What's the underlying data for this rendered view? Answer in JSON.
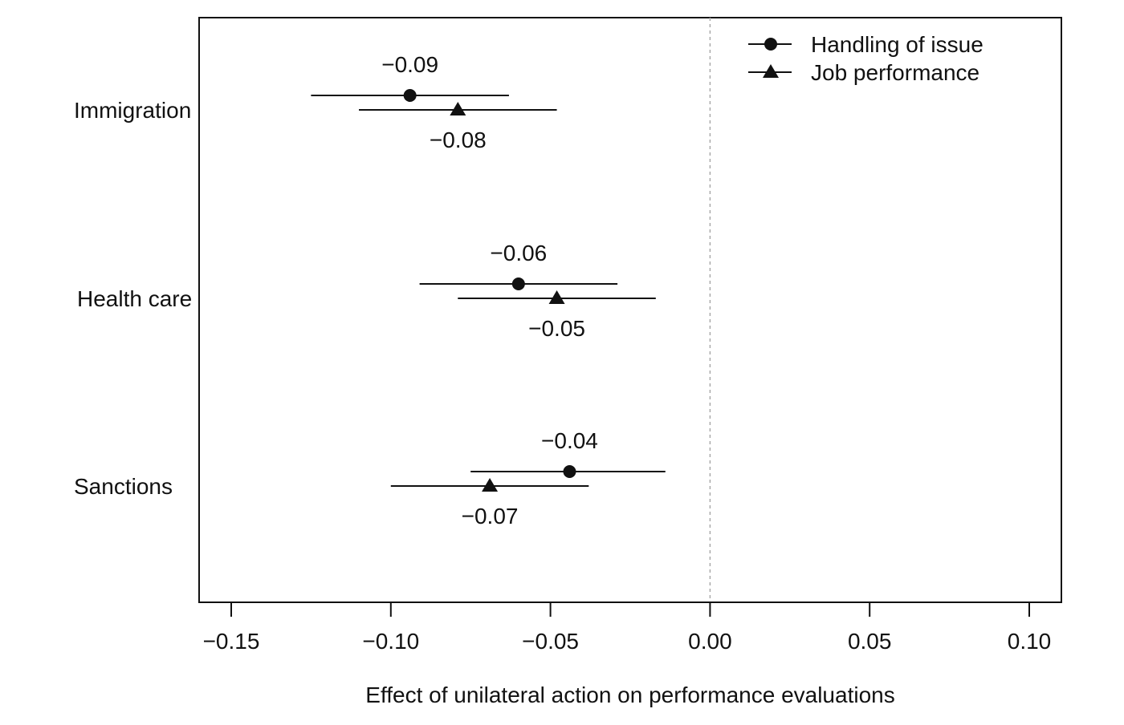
{
  "chart_data": {
    "type": "scatter",
    "xlabel": "Effect of unilateral action on performance evaluations",
    "xlim": [
      -0.16,
      0.11
    ],
    "xticks": [
      -0.15,
      -0.1,
      -0.05,
      0.0,
      0.05,
      0.1
    ],
    "xtick_labels": [
      "−0.15",
      "−0.10",
      "−0.05",
      "0.00",
      "0.05",
      "0.10"
    ],
    "reference_line_x": 0,
    "grid": false,
    "legend_position": "top-right",
    "categories": [
      "Immigration",
      "Health care",
      "Sanctions"
    ],
    "series": [
      {
        "name": "Handling of issue",
        "marker": "circle",
        "points": [
          {
            "category": "Immigration",
            "estimate": -0.094,
            "ci_low": -0.125,
            "ci_high": -0.063,
            "label": "−0.09"
          },
          {
            "category": "Health care",
            "estimate": -0.06,
            "ci_low": -0.091,
            "ci_high": -0.029,
            "label": "−0.06"
          },
          {
            "category": "Sanctions",
            "estimate": -0.044,
            "ci_low": -0.075,
            "ci_high": -0.014,
            "label": "−0.04"
          }
        ]
      },
      {
        "name": "Job performance",
        "marker": "triangle",
        "points": [
          {
            "category": "Immigration",
            "estimate": -0.079,
            "ci_low": -0.11,
            "ci_high": -0.048,
            "label": "−0.08"
          },
          {
            "category": "Health care",
            "estimate": -0.048,
            "ci_low": -0.079,
            "ci_high": -0.017,
            "label": "−0.05"
          },
          {
            "category": "Sanctions",
            "estimate": -0.069,
            "ci_low": -0.1,
            "ci_high": -0.038,
            "label": "−0.07"
          }
        ]
      }
    ]
  }
}
